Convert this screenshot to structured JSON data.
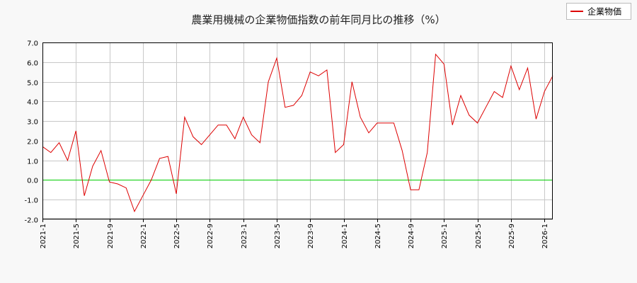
{
  "chart_data": {
    "type": "line",
    "title": "農業用機械の企業物価指数の前年同月比の推移（%）",
    "xlabel": "",
    "ylabel": "",
    "ylim": [
      -2.0,
      7.0
    ],
    "yticks": [
      "-2.0",
      "-1.0",
      "0.0",
      "1.0",
      "2.0",
      "3.0",
      "4.0",
      "5.0",
      "6.0",
      "7.0"
    ],
    "xticks": [
      "2021-1",
      "2021-5",
      "2021-9",
      "2022-1",
      "2022-5",
      "2022-9",
      "2023-1",
      "2023-5",
      "2023-9",
      "2024-1",
      "2024-5",
      "2024-9",
      "2025-1",
      "2025-5",
      "2025-9",
      "2026-1"
    ],
    "grid": true,
    "legend_position": "top-right",
    "zero_line_color": "#00cc00",
    "series": [
      {
        "name": "企業物価",
        "color": "#dd0000",
        "x": [
          "2021-1",
          "2021-2",
          "2021-3",
          "2021-4",
          "2021-5",
          "2021-6",
          "2021-7",
          "2021-8",
          "2021-9",
          "2021-10",
          "2021-11",
          "2021-12",
          "2022-1",
          "2022-2",
          "2022-3",
          "2022-4",
          "2022-5",
          "2022-6",
          "2022-7",
          "2022-8",
          "2022-9",
          "2022-10",
          "2022-11",
          "2022-12",
          "2023-1",
          "2023-2",
          "2023-3",
          "2023-4",
          "2023-5",
          "2023-6",
          "2023-7",
          "2023-8",
          "2023-9",
          "2023-10",
          "2023-11",
          "2023-12",
          "2024-1",
          "2024-2",
          "2024-3",
          "2024-4",
          "2024-5",
          "2024-6",
          "2024-7",
          "2024-8",
          "2024-9",
          "2024-10",
          "2024-11",
          "2024-12",
          "2025-1",
          "2025-2",
          "2025-3",
          "2025-4",
          "2025-5",
          "2025-6",
          "2025-7",
          "2025-8",
          "2025-9",
          "2025-10",
          "2025-11",
          "2025-12",
          "2026-1",
          "2026-2"
        ],
        "values": [
          1.7,
          1.4,
          1.9,
          1.0,
          2.5,
          -0.8,
          0.7,
          1.5,
          -0.1,
          -0.2,
          -0.4,
          -1.6,
          -0.8,
          0.0,
          1.1,
          1.2,
          -0.7,
          3.2,
          2.2,
          1.8,
          2.3,
          2.8,
          2.8,
          2.1,
          3.2,
          2.3,
          1.9,
          5.0,
          6.2,
          3.7,
          3.8,
          4.3,
          5.5,
          5.3,
          5.6,
          1.4,
          1.8,
          5.0,
          3.2,
          2.4,
          2.9,
          2.9,
          2.9,
          1.5,
          -0.5,
          -0.5,
          1.4,
          6.4,
          5.9,
          2.8,
          4.3,
          3.3,
          2.9,
          3.7,
          4.5,
          4.2,
          5.8,
          4.6,
          5.7,
          3.1,
          4.5,
          5.3
        ]
      }
    ]
  }
}
